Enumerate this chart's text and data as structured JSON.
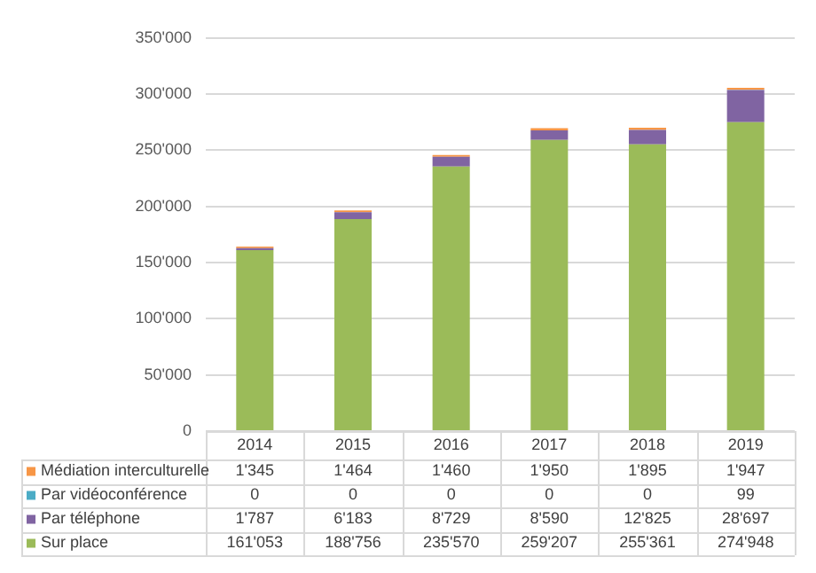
{
  "chart_data": {
    "type": "bar",
    "stacked": true,
    "categories": [
      "2014",
      "2015",
      "2016",
      "2017",
      "2018",
      "2019"
    ],
    "series": [
      {
        "name": "Sur place",
        "color": "#9bbb59",
        "values": [
          161053,
          188756,
          235570,
          259207,
          255361,
          274948
        ],
        "value_labels": [
          "161'053",
          "188'756",
          "235'570",
          "259'207",
          "255'361",
          "274'948"
        ]
      },
      {
        "name": "Par téléphone",
        "color": "#8064a2",
        "values": [
          1787,
          6183,
          8729,
          8590,
          12825,
          28697
        ],
        "value_labels": [
          "1'787",
          "6'183",
          "8'729",
          "8'590",
          "12'825",
          "28'697"
        ]
      },
      {
        "name": "Par vidéoconférence",
        "color": "#4bacc6",
        "values": [
          0,
          0,
          0,
          0,
          0,
          99
        ],
        "value_labels": [
          "0",
          "0",
          "0",
          "0",
          "0",
          "99"
        ]
      },
      {
        "name": "Médiation interculturelle",
        "color": "#f79646",
        "values": [
          1345,
          1464,
          1460,
          1950,
          1895,
          1947
        ],
        "value_labels": [
          "1'345",
          "1'464",
          "1'460",
          "1'950",
          "1'895",
          "1'947"
        ]
      }
    ],
    "ylim": [
      0,
      350000
    ],
    "yticks": [
      0,
      {
        "value": 50000,
        "label": "50'000"
      },
      {
        "value": 100000,
        "label": "100'000"
      },
      {
        "value": 150000,
        "label": "150'000"
      },
      {
        "value": 200000,
        "label": "200'000"
      },
      {
        "value": 250000,
        "label": "250'000"
      },
      {
        "value": 300000,
        "label": "300'000"
      },
      {
        "value": 350000,
        "label": "350'000"
      }
    ],
    "grid": "y",
    "legend": "bottom"
  }
}
